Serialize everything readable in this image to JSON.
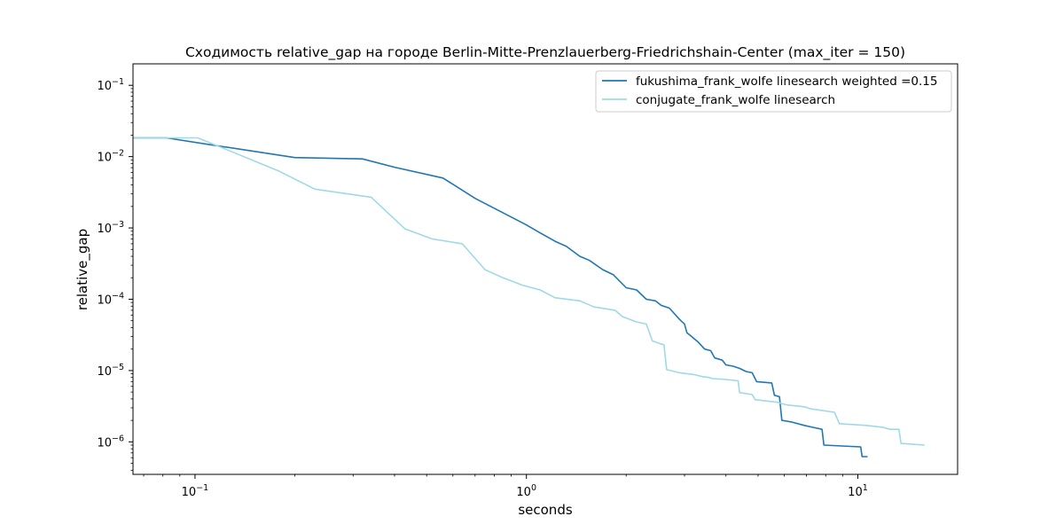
{
  "chart_data": {
    "type": "line",
    "title": "Сходимость relative_gap на городе Berlin-Mitte-Prenzlauerberg-Friedrichshain-Center  (max_iter = 150)",
    "xlabel": "seconds",
    "ylabel": "relative_gap",
    "xscale": "log",
    "yscale": "log",
    "xlim": [
      0.065,
      20
    ],
    "ylim": [
      3.5e-07,
      0.2
    ],
    "grid": false,
    "legend_position": "top-right",
    "x_ticks": [
      {
        "value": 0.1,
        "base": "10",
        "exp": "−1"
      },
      {
        "value": 1,
        "base": "10",
        "exp": "0"
      },
      {
        "value": 10,
        "base": "10",
        "exp": "1"
      }
    ],
    "y_ticks": [
      {
        "value": 1e-06,
        "base": "10",
        "exp": "−6"
      },
      {
        "value": 1e-05,
        "base": "10",
        "exp": "−5"
      },
      {
        "value": 0.0001,
        "base": "10",
        "exp": "−4"
      },
      {
        "value": 0.001,
        "base": "10",
        "exp": "−3"
      },
      {
        "value": 0.01,
        "base": "10",
        "exp": "−2"
      },
      {
        "value": 0.1,
        "base": "10",
        "exp": "−1"
      }
    ],
    "series": [
      {
        "name": "fukushima_frank_wolfe linesearch weighted =0.15",
        "color": "#1f77b4",
        "points": [
          [
            0.065,
            0.0183
          ],
          [
            0.082,
            0.0183
          ],
          [
            0.11,
            0.0148
          ],
          [
            0.2,
            0.0097
          ],
          [
            0.32,
            0.0093
          ],
          [
            0.4,
            0.0071
          ],
          [
            0.56,
            0.005
          ],
          [
            0.7,
            0.0026
          ],
          [
            0.78,
            0.002
          ],
          [
            0.88,
            0.0015
          ],
          [
            1.0,
            0.0011
          ],
          [
            1.1,
            0.00085
          ],
          [
            1.22,
            0.00065
          ],
          [
            1.32,
            0.00055
          ],
          [
            1.45,
            0.0004
          ],
          [
            1.55,
            0.00035
          ],
          [
            1.7,
            0.00026
          ],
          [
            1.83,
            0.00022
          ],
          [
            2.0,
            0.000145
          ],
          [
            2.15,
            0.000135
          ],
          [
            2.3,
            0.0001
          ],
          [
            2.45,
            9.5e-05
          ],
          [
            2.55,
            8.2e-05
          ],
          [
            2.7,
            7.5e-05
          ],
          [
            2.9,
            5.2e-05
          ],
          [
            3.0,
            4.5e-05
          ],
          [
            3.05,
            3.4e-05
          ],
          [
            3.15,
            3e-05
          ],
          [
            3.3,
            2.5e-05
          ],
          [
            3.45,
            2e-05
          ],
          [
            3.6,
            1.9e-05
          ],
          [
            3.7,
            1.5e-05
          ],
          [
            3.9,
            1.4e-05
          ],
          [
            4.0,
            1.2e-05
          ],
          [
            4.2,
            1.15e-05
          ],
          [
            4.4,
            1.07e-05
          ],
          [
            4.6,
            9.7e-06
          ],
          [
            4.8,
            9.3e-06
          ],
          [
            4.95,
            7e-06
          ],
          [
            5.5,
            6.7e-06
          ],
          [
            5.6,
            4.5e-06
          ],
          [
            5.8,
            4.3e-06
          ],
          [
            5.9,
            2e-06
          ],
          [
            6.3,
            1.9e-06
          ],
          [
            6.9,
            1.7e-06
          ],
          [
            7.3,
            1.6e-06
          ],
          [
            7.8,
            1.5e-06
          ],
          [
            7.9,
            9e-07
          ],
          [
            10.2,
            8.5e-07
          ],
          [
            10.3,
            6.2e-07
          ],
          [
            10.7,
            6.2e-07
          ]
        ]
      },
      {
        "name": "conjugate_frank_wolfe linesearch",
        "color": "#9edae5",
        "points": [
          [
            0.065,
            0.0183
          ],
          [
            0.102,
            0.0183
          ],
          [
            0.12,
            0.0135
          ],
          [
            0.18,
            0.0062
          ],
          [
            0.23,
            0.0035
          ],
          [
            0.34,
            0.0027
          ],
          [
            0.43,
            0.00097
          ],
          [
            0.52,
            0.0007
          ],
          [
            0.64,
            0.0006
          ],
          [
            0.75,
            0.00026
          ],
          [
            0.85,
            0.0002
          ],
          [
            0.97,
            0.000158
          ],
          [
            1.1,
            0.000135
          ],
          [
            1.22,
            0.000105
          ],
          [
            1.45,
            9.5e-05
          ],
          [
            1.6,
            7.8e-05
          ],
          [
            1.85,
            7e-05
          ],
          [
            1.95,
            5.7e-05
          ],
          [
            2.15,
            4.8e-05
          ],
          [
            2.3,
            4.5e-05
          ],
          [
            2.4,
            2.6e-05
          ],
          [
            2.52,
            2.4e-05
          ],
          [
            2.6,
            2.3e-05
          ],
          [
            2.65,
            1.03e-05
          ],
          [
            2.9,
            9.3e-06
          ],
          [
            3.2,
            8.8e-06
          ],
          [
            3.4,
            8.2e-06
          ],
          [
            3.55,
            8e-06
          ],
          [
            3.65,
            7.7e-06
          ],
          [
            4.0,
            7.5e-06
          ],
          [
            4.35,
            7.2e-06
          ],
          [
            4.4,
            4.9e-06
          ],
          [
            4.8,
            4.6e-06
          ],
          [
            4.9,
            3.9e-06
          ],
          [
            5.7,
            3.6e-06
          ],
          [
            6.1,
            3.3e-06
          ],
          [
            6.9,
            3.1e-06
          ],
          [
            7.2,
            2.9e-06
          ],
          [
            8.5,
            2.6e-06
          ],
          [
            8.8,
            1.8e-06
          ],
          [
            10.6,
            1.7e-06
          ],
          [
            11.9,
            1.6e-06
          ],
          [
            12.5,
            1.5e-06
          ],
          [
            13.3,
            1.5e-06
          ],
          [
            13.5,
            9.5e-07
          ],
          [
            15.9,
            9e-07
          ]
        ]
      }
    ]
  }
}
